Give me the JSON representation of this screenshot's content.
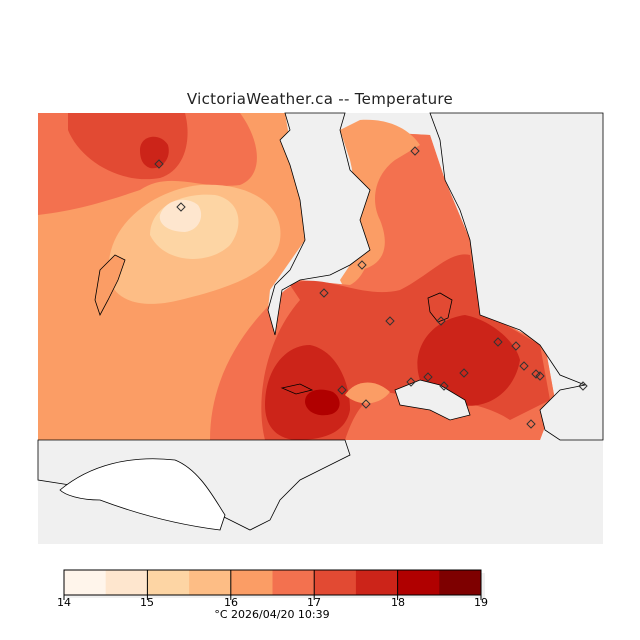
{
  "title": "VictoriaWeather.ca  --  Temperature",
  "colorbar": {
    "levels": [
      14,
      14.5,
      15,
      15.5,
      16,
      16.5,
      17,
      17.5,
      18,
      18.5,
      19
    ],
    "tick_labels": [
      "14",
      "15",
      "16",
      "17",
      "18",
      "19"
    ],
    "colors": [
      "#fff5eb",
      "#fee6ce",
      "#fdd5a4",
      "#fdbd85",
      "#fb9d65",
      "#f3714f",
      "#e24a33",
      "#cc2419",
      "#b00000",
      "#7e0000"
    ],
    "unit": "°C",
    "timestamp": "2026/04/20 10:39"
  },
  "footer": "°C  2026/04/20 10:39",
  "colors": {
    "land_mask": "#f0f0f0",
    "coast": "#000000"
  }
}
